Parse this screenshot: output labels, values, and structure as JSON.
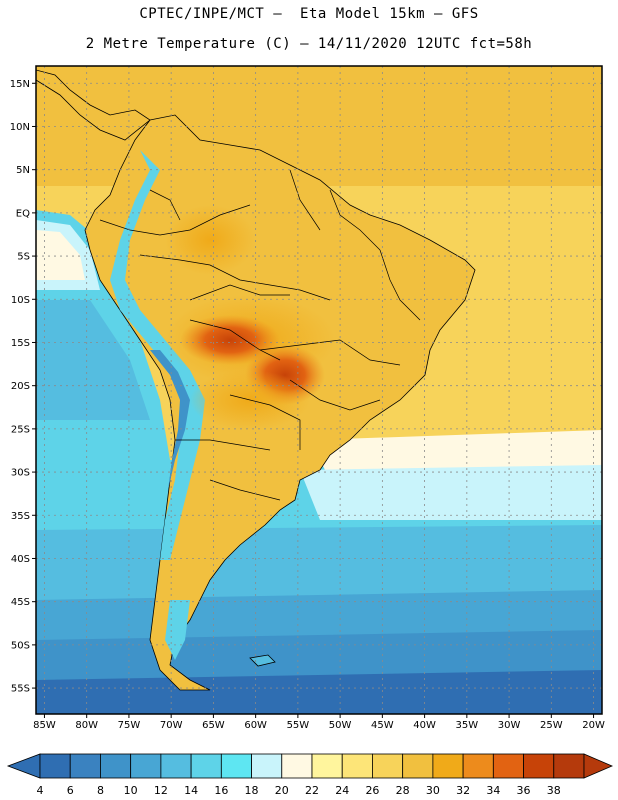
{
  "header": {
    "line1": "CPTEC/INPE/MCT –  Eta Model 15km – GFS",
    "line2": "2 Metre Temperature (C) – 14/11/2020 12UTC fct=58h"
  },
  "axes": {
    "lat_labels": [
      "15N",
      "10N",
      "5N",
      "EQ",
      "5S",
      "10S",
      "15S",
      "20S",
      "25S",
      "30S",
      "35S",
      "40S",
      "45S",
      "50S",
      "55S"
    ],
    "lat_values": [
      15,
      10,
      5,
      0,
      -5,
      -10,
      -15,
      -20,
      -25,
      -30,
      -35,
      -40,
      -45,
      -50,
      -55
    ],
    "lon_labels": [
      "85W",
      "80W",
      "75W",
      "70W",
      "65W",
      "60W",
      "55W",
      "50W",
      "45W",
      "40W",
      "35W",
      "30W",
      "25W",
      "20W"
    ],
    "lon_values": [
      -85,
      -80,
      -75,
      -70,
      -65,
      -60,
      -55,
      -50,
      -45,
      -40,
      -35,
      -30,
      -25,
      -20
    ],
    "lat_range": [
      -58,
      17
    ],
    "lon_range": [
      -86,
      -19
    ],
    "grid": true
  },
  "colorbar": {
    "labels": [
      "4",
      "6",
      "8",
      "10",
      "12",
      "14",
      "16",
      "18",
      "20",
      "22",
      "24",
      "26",
      "28",
      "30",
      "32",
      "34",
      "36",
      "38"
    ],
    "colors": [
      "#2f6eb2",
      "#3a82c0",
      "#3f93c9",
      "#48a6d4",
      "#55bde0",
      "#5ed3e8",
      "#5ee6f2",
      "#c9f4fb",
      "#fff9e3",
      "#fff59d",
      "#fde578",
      "#f7d35a",
      "#f1c03f",
      "#f0aa19",
      "#ed8b1c",
      "#e26312",
      "#c74308",
      "#b53a0c"
    ]
  }
}
